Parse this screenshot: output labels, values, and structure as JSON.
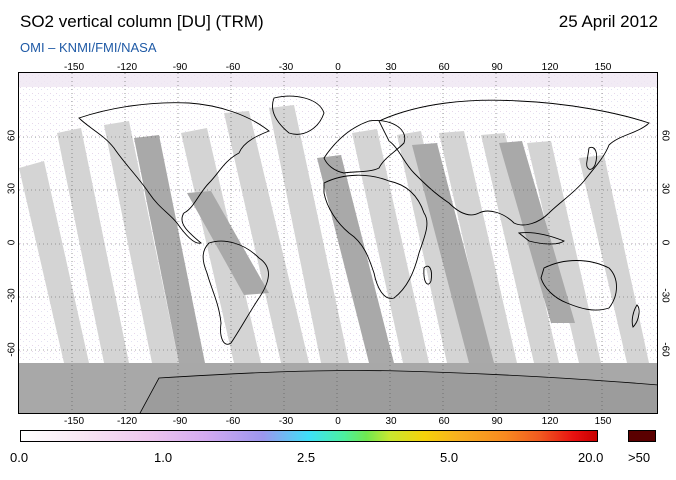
{
  "header": {
    "title": "SO2 vertical column [DU] (TRM)",
    "date": "25 April 2012",
    "source": "OMI  –  KNMI/FMI/NASA"
  },
  "map": {
    "lon_ticks": [
      "-150",
      "-120",
      "-90",
      "-60",
      "-30",
      "0",
      "30",
      "60",
      "90",
      "120",
      "150"
    ],
    "lat_ticks": [
      "60",
      "30",
      "0",
      "-30",
      "-60"
    ],
    "land_color": "#000000",
    "swath_color_light": "#d2d2d2",
    "swath_color_dark": "#a8a8a8",
    "antarctic_color": "#a0a0a0"
  },
  "colorbar": {
    "labels": [
      "0.0",
      "1.0",
      "2.5",
      "5.0",
      "20.0"
    ],
    "over_label": ">50",
    "over_color": "#5a0000"
  }
}
